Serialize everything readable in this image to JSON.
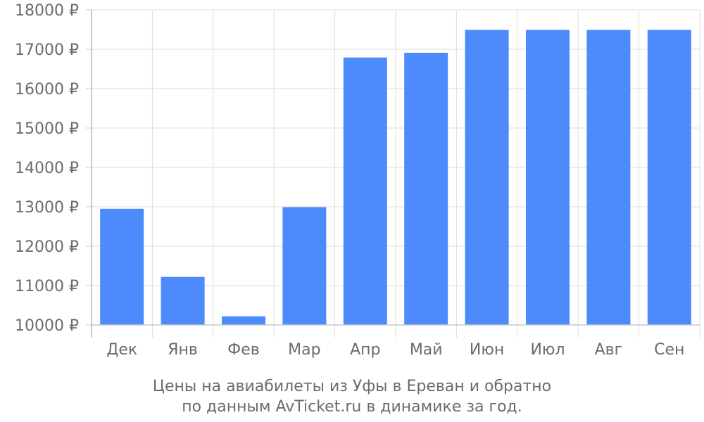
{
  "chart_data": {
    "type": "bar",
    "categories": [
      "Дек",
      "Янв",
      "Фев",
      "Мар",
      "Апр",
      "Май",
      "Июн",
      "Июл",
      "Авг",
      "Сен"
    ],
    "values": [
      12950,
      11220,
      10220,
      12990,
      16790,
      16910,
      17490,
      17490,
      17490,
      17490
    ],
    "y_ticks": [
      "10000 ₽",
      "11000 ₽",
      "12000 ₽",
      "13000 ₽",
      "14000 ₽",
      "15000 ₽",
      "16000 ₽",
      "17000 ₽",
      "18000 ₽"
    ],
    "ylim": [
      10000,
      18000
    ],
    "grid": true,
    "bar_color": "#4d8afb",
    "caption_line1": "Цены на авиабилеты из Уфы в Ереван и обратно",
    "caption_line2": "по данным AvTicket.ru в динамике за год."
  }
}
